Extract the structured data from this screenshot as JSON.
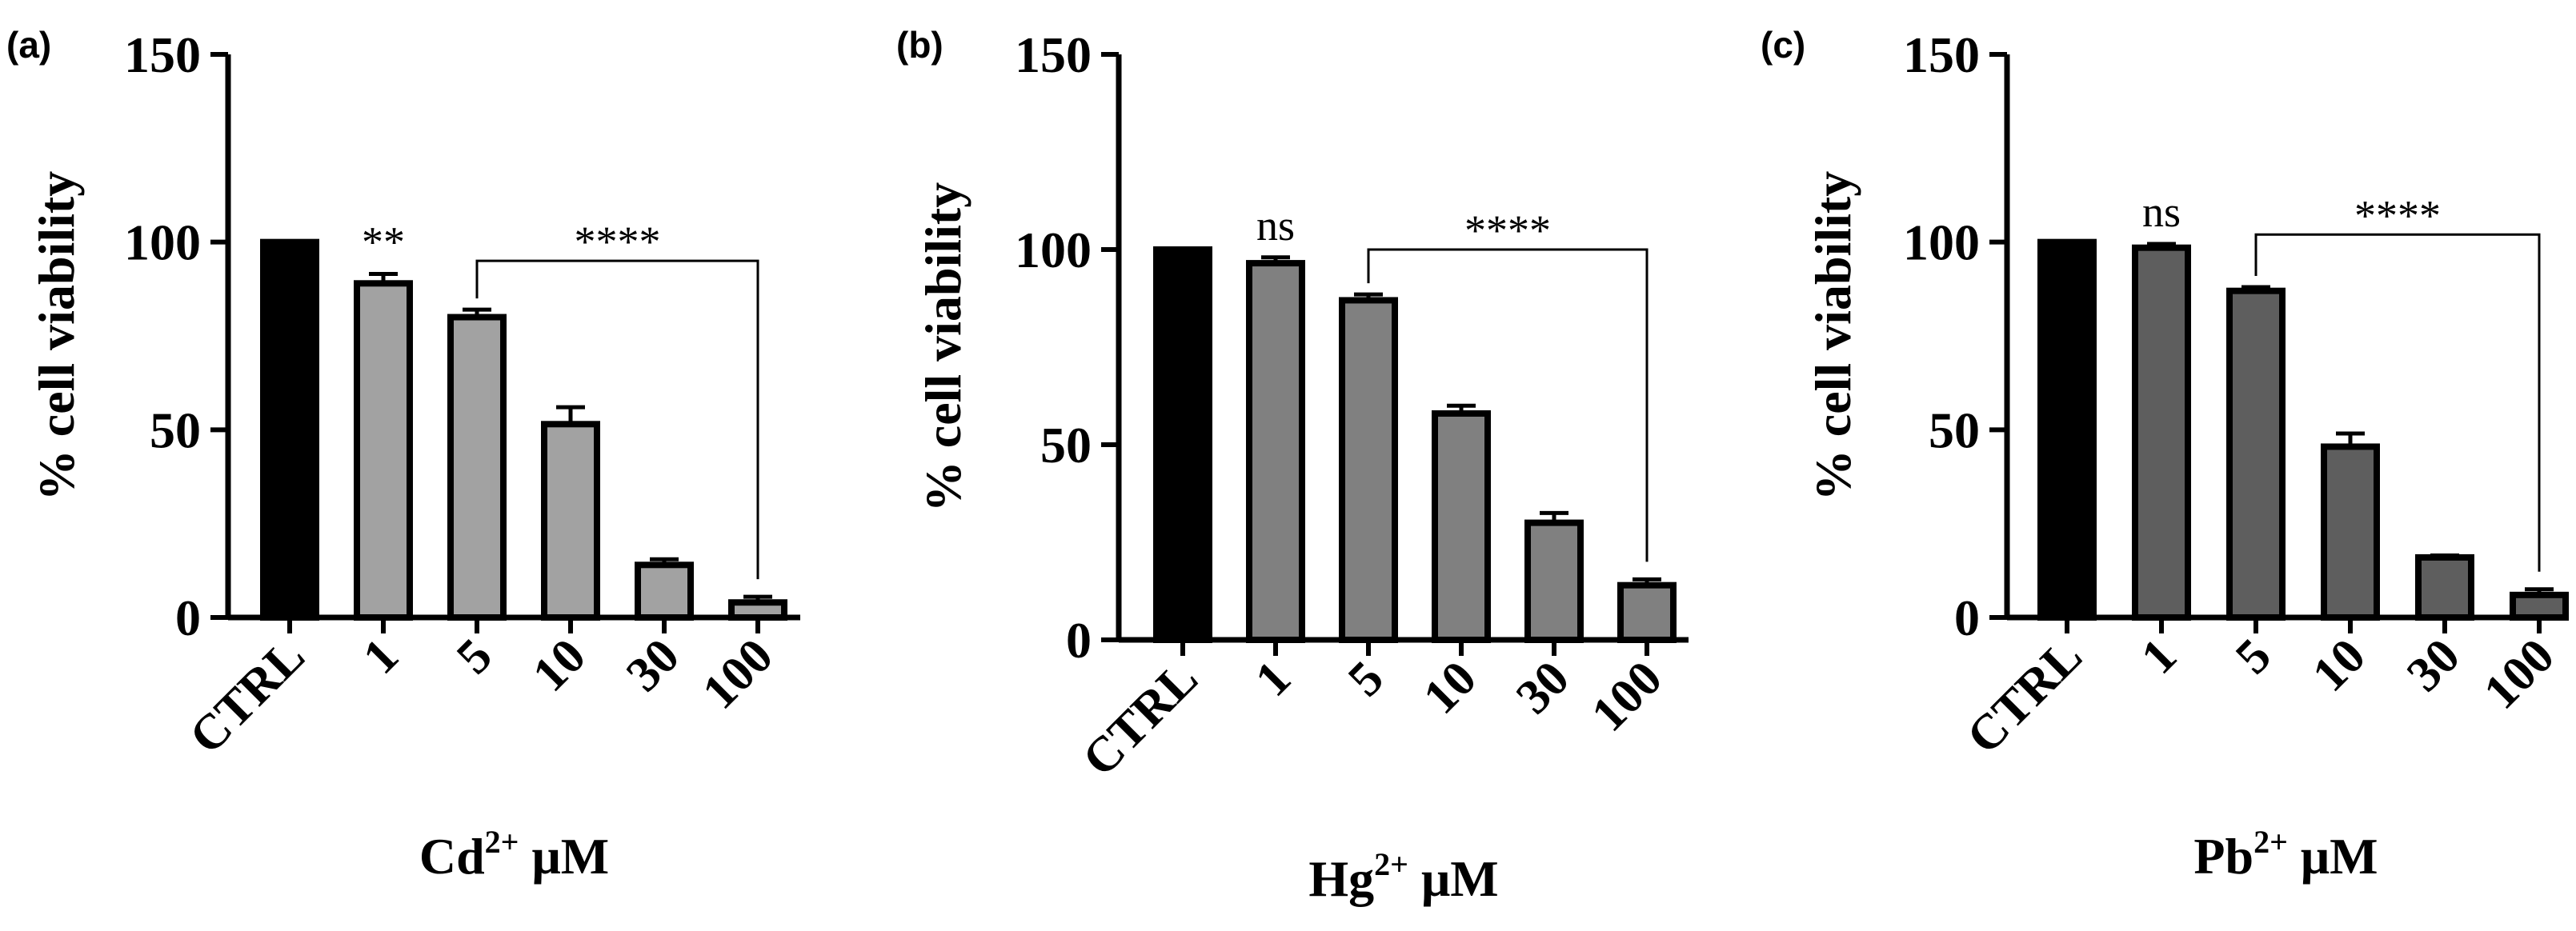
{
  "chart_data": [
    {
      "type": "bar",
      "panel": "(a)",
      "categories": [
        "CTRL",
        "1",
        "5",
        "10",
        "30",
        "100"
      ],
      "values": [
        100,
        89,
        80,
        51.5,
        14,
        4
      ],
      "errors": [
        0,
        2.5,
        2,
        4.5,
        1.5,
        1.5
      ],
      "ylabel": "% cell viability",
      "xlabel_main": "Cd",
      "xlabel_sup": "2+",
      "xlabel_unit": " μM",
      "ylim": [
        0,
        150
      ],
      "yticks": [
        0,
        50,
        100,
        150
      ],
      "colors": [
        "#000000",
        "#a2a2a2",
        "#a2a2a2",
        "#a2a2a2",
        "#a2a2a2",
        "#a2a2a2"
      ],
      "single_annotations": [
        {
          "category": "1",
          "text": "**"
        }
      ],
      "bracket": {
        "from": "5",
        "to": "100",
        "text": "****",
        "level": 95
      }
    },
    {
      "type": "bar",
      "panel": "(b)",
      "categories": [
        "CTRL",
        "1",
        "5",
        "10",
        "30",
        "100"
      ],
      "values": [
        100,
        96.5,
        87,
        58,
        30,
        14
      ],
      "errors": [
        0,
        1.5,
        1.5,
        2,
        2.5,
        1.5
      ],
      "ylabel": "% cell viability",
      "xlabel_main": "Hg",
      "xlabel_sup": "2+",
      "xlabel_unit": " μM",
      "ylim": [
        0,
        150
      ],
      "yticks": [
        0,
        50,
        100,
        150
      ],
      "colors": [
        "#000000",
        "#808080",
        "#808080",
        "#808080",
        "#808080",
        "#808080"
      ],
      "single_annotations": [
        {
          "category": "1",
          "text": "ns"
        }
      ],
      "bracket": {
        "from": "5",
        "to": "100",
        "text": "****",
        "level": 100
      }
    },
    {
      "type": "bar",
      "panel": "(c)",
      "categories": [
        "CTRL",
        "1",
        "5",
        "10",
        "30",
        "100"
      ],
      "values": [
        100,
        98.5,
        87,
        45.5,
        16,
        6
      ],
      "errors": [
        0,
        1,
        1,
        3.5,
        0.5,
        1.5
      ],
      "ylabel": "% cell viability",
      "xlabel_main": "Pb",
      "xlabel_sup": "2+",
      "xlabel_unit": " μM",
      "ylim": [
        0,
        150
      ],
      "yticks": [
        0,
        50,
        100,
        150
      ],
      "colors": [
        "#000000",
        "#5e5e5e",
        "#5e5e5e",
        "#5e5e5e",
        "#5e5e5e",
        "#5e5e5e"
      ],
      "single_annotations": [
        {
          "category": "1",
          "text": "ns"
        }
      ],
      "bracket": {
        "from": "5",
        "to": "100",
        "text": "****",
        "level": 102
      }
    }
  ]
}
